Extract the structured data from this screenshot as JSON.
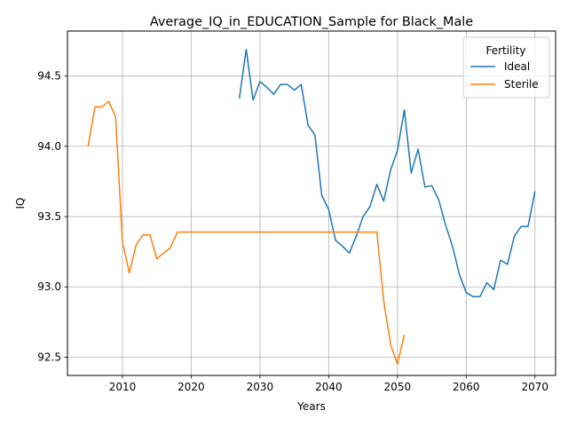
{
  "chart_data": {
    "type": "line",
    "title": "Average_IQ_in_EDUCATION_Sample for Black_Male",
    "xlabel": "Years",
    "ylabel": "IQ",
    "xlim": [
      2002,
      2073
    ],
    "ylim": [
      92.37,
      94.82
    ],
    "xticks": [
      2010,
      2020,
      2030,
      2040,
      2050,
      2060,
      2070
    ],
    "yticks": [
      92.5,
      93.0,
      93.5,
      94.0,
      94.5
    ],
    "ytick_labels": [
      "92.5",
      "93.0",
      "93.5",
      "94.0",
      "94.5"
    ],
    "grid": true,
    "legend": {
      "title": "Fertility",
      "placement": "top-right"
    },
    "series": [
      {
        "name": "Ideal",
        "color": "#1f77b4",
        "x": [
          2027,
          2028,
          2029,
          2030,
          2031,
          2032,
          2033,
          2034,
          2035,
          2036,
          2037,
          2038,
          2039,
          2040,
          2041,
          2042,
          2043,
          2044,
          2045,
          2046,
          2047,
          2048,
          2049,
          2050,
          2051,
          2052,
          2053,
          2054,
          2055,
          2056,
          2057,
          2058,
          2059,
          2060,
          2061,
          2062,
          2063,
          2064,
          2065,
          2066,
          2067,
          2068,
          2069,
          2070
        ],
        "y": [
          94.34,
          94.69,
          94.33,
          94.46,
          94.42,
          94.37,
          94.44,
          94.44,
          94.4,
          94.44,
          94.15,
          94.08,
          93.65,
          93.55,
          93.33,
          93.29,
          93.24,
          93.36,
          93.5,
          93.57,
          93.73,
          93.61,
          93.83,
          93.97,
          94.26,
          93.81,
          93.98,
          93.71,
          93.72,
          93.62,
          93.44,
          93.29,
          93.09,
          92.96,
          92.93,
          92.93,
          93.03,
          92.98,
          93.19,
          93.16,
          93.36,
          93.43,
          93.43,
          93.68
        ]
      },
      {
        "name": "Sterile",
        "color": "#ff7f0e",
        "x": [
          2005,
          2006,
          2007,
          2008,
          2009,
          2010,
          2011,
          2012,
          2013,
          2014,
          2015,
          2016,
          2017,
          2018,
          2019,
          2020,
          2025,
          2030,
          2035,
          2040,
          2045,
          2046,
          2047,
          2048,
          2049,
          2050,
          2051
        ],
        "y": [
          94.0,
          94.28,
          94.28,
          94.32,
          94.21,
          93.32,
          93.1,
          93.3,
          93.37,
          93.37,
          93.2,
          93.24,
          93.28,
          93.39,
          93.39,
          93.39,
          93.39,
          93.39,
          93.39,
          93.39,
          93.39,
          93.39,
          93.39,
          92.9,
          92.59,
          92.45,
          92.66
        ]
      }
    ]
  }
}
